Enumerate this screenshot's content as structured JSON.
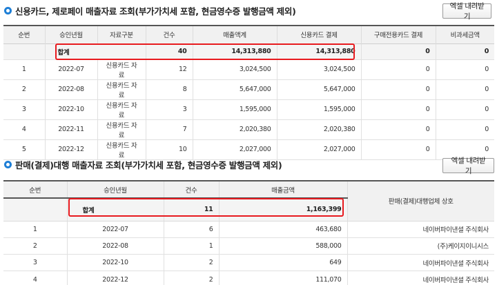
{
  "section1": {
    "title": "신용카드, 제로페이 매출자료 조회(부가가치세 포함, 현금영수증 발행금액 제외)",
    "excel_label": "엑셀 내려받기",
    "headers": [
      "순번",
      "승인년월",
      "자료구분",
      "건수",
      "매출액계",
      "신용카드 결제",
      "구매전용카드 결제",
      "비과세금액"
    ],
    "total": {
      "label": "합계",
      "count": "40",
      "sales": "14,313,880",
      "card": "14,313,880",
      "purchase": "0",
      "taxfree": "0"
    },
    "rows": [
      {
        "no": "1",
        "month": "2022-07",
        "type": "신용카드 자료",
        "count": "12",
        "sales": "3,024,500",
        "card": "3,024,500",
        "purchase": "0",
        "taxfree": "0"
      },
      {
        "no": "2",
        "month": "2022-08",
        "type": "신용카드 자료",
        "count": "8",
        "sales": "5,647,000",
        "card": "5,647,000",
        "purchase": "0",
        "taxfree": "0"
      },
      {
        "no": "3",
        "month": "2022-10",
        "type": "신용카드 자료",
        "count": "3",
        "sales": "1,595,000",
        "card": "1,595,000",
        "purchase": "0",
        "taxfree": "0"
      },
      {
        "no": "4",
        "month": "2022-11",
        "type": "신용카드 자료",
        "count": "7",
        "sales": "2,020,380",
        "card": "2,020,380",
        "purchase": "0",
        "taxfree": "0"
      },
      {
        "no": "5",
        "month": "2022-12",
        "type": "신용카드 자료",
        "count": "10",
        "sales": "2,027,000",
        "card": "2,027,000",
        "purchase": "0",
        "taxfree": "0"
      }
    ]
  },
  "section2": {
    "title": "판매(결제)대행 매출자료 조회(부가가치세 포함, 현금영수증 발행금액 제외)",
    "excel_label": "엑셀 내려받기",
    "headers": [
      "순번",
      "승인년월",
      "건수",
      "매출금액",
      "판매(결제)대행업체 상호"
    ],
    "total": {
      "label": "합계",
      "count": "11",
      "sales": "1,163,399"
    },
    "rows": [
      {
        "no": "1",
        "month": "2022-07",
        "count": "6",
        "sales": "463,680",
        "vendor": "네이버파이낸셜 주식회사"
      },
      {
        "no": "2",
        "month": "2022-08",
        "count": "1",
        "sales": "588,000",
        "vendor": "(주)케이지이니시스"
      },
      {
        "no": "3",
        "month": "2022-10",
        "count": "2",
        "sales": "649",
        "vendor": "네이버파이낸셜 주식회사"
      },
      {
        "no": "4",
        "month": "2022-12",
        "count": "2",
        "sales": "111,070",
        "vendor": "네이버파이낸셜 주식회사"
      }
    ]
  }
}
